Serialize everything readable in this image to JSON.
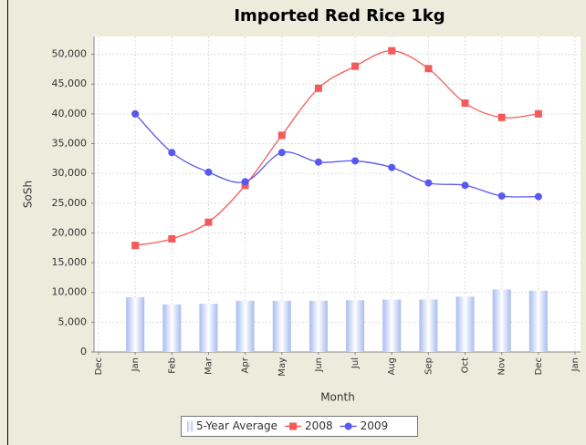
{
  "chart_data": {
    "type": "line",
    "title": "Imported Red Rice 1kg",
    "x_label": "Month",
    "y_label": "SoSh",
    "categories": [
      "Dec",
      "Jan",
      "Feb",
      "Mar",
      "Apr",
      "May",
      "Jun",
      "Jul",
      "Aug",
      "Sep",
      "Oct",
      "Nov",
      "Dec",
      "Jan"
    ],
    "series": [
      {
        "name": "5-Year Average",
        "type": "bar",
        "color": "#b8c8f0",
        "values": [
          null,
          9200,
          8000,
          8100,
          8600,
          8600,
          8600,
          8700,
          8800,
          8800,
          9300,
          10500,
          10300,
          null
        ]
      },
      {
        "name": "2008",
        "type": "line",
        "marker": "square",
        "color": "#f55a5a",
        "values": [
          null,
          17900,
          19000,
          21800,
          28000,
          36400,
          44300,
          48000,
          50600,
          47600,
          41800,
          39400,
          40000,
          null
        ]
      },
      {
        "name": "2009",
        "type": "line",
        "marker": "circle",
        "color": "#5858f0",
        "values": [
          null,
          40000,
          33500,
          30200,
          28600,
          33500,
          31900,
          32100,
          31000,
          28400,
          28000,
          26200,
          26100,
          null
        ]
      }
    ],
    "ylim": [
      0,
      53000
    ],
    "yticks": [
      0,
      {
        "value": 5000,
        "label": "5,000"
      },
      {
        "value": 10000,
        "label": "10,000"
      },
      {
        "value": 15000,
        "label": "15,000"
      },
      {
        "value": 20000,
        "label": "20,000"
      },
      {
        "value": 25000,
        "label": "25,000"
      },
      {
        "value": 30000,
        "label": "30,000"
      },
      {
        "value": 35000,
        "label": "35,000"
      },
      {
        "value": 40000,
        "label": "40,000"
      },
      {
        "value": 45000,
        "label": "45,000"
      },
      {
        "value": 50000,
        "label": "50,000"
      }
    ],
    "grid": true,
    "legend": "bottom"
  }
}
